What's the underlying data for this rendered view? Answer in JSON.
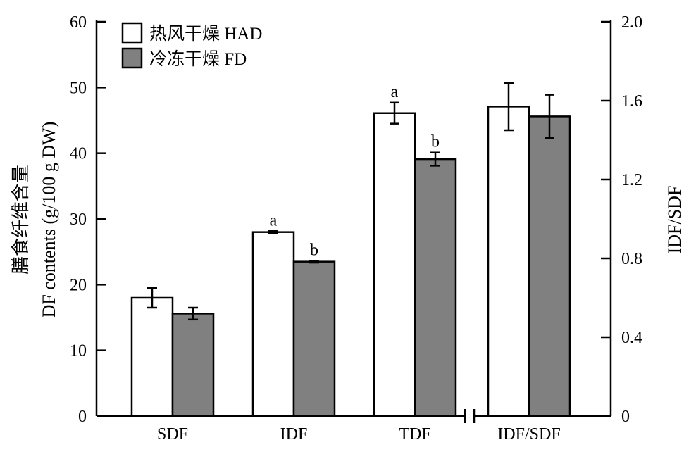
{
  "chart_data": {
    "type": "bar",
    "categories": [
      "SDF",
      "IDF",
      "TDF",
      "IDF/SDF"
    ],
    "series": [
      {
        "name": "热风干燥 HAD",
        "color": "#ffffff",
        "values": [
          18.0,
          28.0,
          46.1,
          1.57
        ],
        "errors": [
          1.5,
          0.15,
          1.6,
          0.12
        ],
        "labels": [
          "",
          "a",
          "a",
          ""
        ]
      },
      {
        "name": "冷冻干燥 FD",
        "color": "#808080",
        "values": [
          15.6,
          23.5,
          39.1,
          1.52
        ],
        "errors": [
          0.9,
          0.15,
          1.0,
          0.11
        ],
        "labels": [
          "",
          "b",
          "b",
          ""
        ]
      }
    ],
    "ylabel_line1": "膳食纤维含量",
    "ylabel_line2": "DF contents (g/100 g DW)",
    "y2label": "IDF/SDF",
    "ylim": [
      0,
      60
    ],
    "yticks": [
      "0",
      "10",
      "20",
      "30",
      "40",
      "50",
      "60"
    ],
    "y2lim": [
      0,
      2.0
    ],
    "y2ticks": [
      "0",
      "0.4",
      "0.8",
      "1.2",
      "1.6",
      "2.0"
    ],
    "secondary_axis_category": "IDF/SDF",
    "axis_break": true,
    "legend_position": "top-left",
    "grid": false
  }
}
